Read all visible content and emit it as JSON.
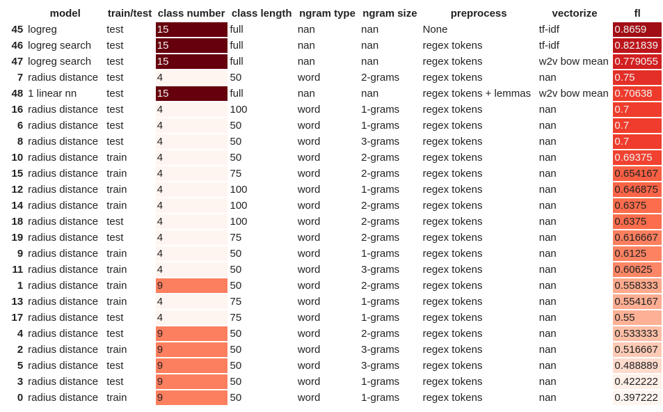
{
  "columns": [
    "model",
    "train/test",
    "class number",
    "class length",
    "ngram type",
    "ngram size",
    "preprocess",
    "vectorize",
    "fl"
  ],
  "rows": [
    {
      "idx": "45",
      "model": "logreg",
      "tt": "test",
      "cn": "15",
      "cl": "full",
      "nt": "nan",
      "ns": "nan",
      "pp": "None",
      "vec": "tf-idf",
      "f1": "0.8659",
      "cn_color": "#67000d",
      "cn_text": "#f1f1f1",
      "f1_color": "#a10e15",
      "f1_text": "#f1f1f1"
    },
    {
      "idx": "46",
      "model": "logreg search",
      "tt": "test",
      "cn": "15",
      "cl": "full",
      "nt": "nan",
      "ns": "nan",
      "pp": "regex tokens",
      "vec": "tf-idf",
      "f1": "0.821839",
      "cn_color": "#67000d",
      "cn_text": "#f1f1f1",
      "f1_color": "#bb141a",
      "f1_text": "#f1f1f1"
    },
    {
      "idx": "47",
      "model": "logreg search",
      "tt": "test",
      "cn": "15",
      "cl": "full",
      "nt": "nan",
      "ns": "nan",
      "pp": "regex tokens",
      "vec": "w2v bow mean",
      "f1": "0.779055",
      "cn_color": "#67000d",
      "cn_text": "#f1f1f1",
      "f1_color": "#d21f20",
      "f1_text": "#f1f1f1"
    },
    {
      "idx": "7",
      "model": "radius distance",
      "tt": "test",
      "cn": "4",
      "cl": "50",
      "nt": "word",
      "ns": "2-grams",
      "pp": "regex tokens",
      "vec": "nan",
      "f1": "0.75",
      "cn_color": "#fff5f0",
      "cn_text": "#222222",
      "f1_color": "#e32f27",
      "f1_text": "#f1f1f1"
    },
    {
      "idx": "48",
      "model": "1 linear nn",
      "tt": "test",
      "cn": "15",
      "cl": "full",
      "nt": "nan",
      "ns": "nan",
      "pp": "regex tokens + lemmas",
      "vec": "w2v bow mean",
      "f1": "0.70638",
      "cn_color": "#67000d",
      "cn_text": "#f1f1f1",
      "f1_color": "#ee3a2c",
      "f1_text": "#f1f1f1"
    },
    {
      "idx": "16",
      "model": "radius distance",
      "tt": "test",
      "cn": "4",
      "cl": "100",
      "nt": "word",
      "ns": "1-grams",
      "pp": "regex tokens",
      "vec": "nan",
      "f1": "0.7",
      "cn_color": "#fff5f0",
      "cn_text": "#222222",
      "f1_color": "#ef3c2c",
      "f1_text": "#f1f1f1"
    },
    {
      "idx": "6",
      "model": "radius distance",
      "tt": "test",
      "cn": "4",
      "cl": "50",
      "nt": "word",
      "ns": "1-grams",
      "pp": "regex tokens",
      "vec": "nan",
      "f1": "0.7",
      "cn_color": "#fff5f0",
      "cn_text": "#222222",
      "f1_color": "#ef3c2c",
      "f1_text": "#f1f1f1"
    },
    {
      "idx": "8",
      "model": "radius distance",
      "tt": "test",
      "cn": "4",
      "cl": "50",
      "nt": "word",
      "ns": "3-grams",
      "pp": "regex tokens",
      "vec": "nan",
      "f1": "0.7",
      "cn_color": "#fff5f0",
      "cn_text": "#222222",
      "f1_color": "#ef3c2c",
      "f1_text": "#f1f1f1"
    },
    {
      "idx": "10",
      "model": "radius distance",
      "tt": "train",
      "cn": "4",
      "cl": "50",
      "nt": "word",
      "ns": "2-grams",
      "pp": "regex tokens",
      "vec": "nan",
      "f1": "0.69375",
      "cn_color": "#fff5f0",
      "cn_text": "#222222",
      "f1_color": "#f14130",
      "f1_text": "#f1f1f1"
    },
    {
      "idx": "15",
      "model": "radius distance",
      "tt": "train",
      "cn": "4",
      "cl": "75",
      "nt": "word",
      "ns": "2-grams",
      "pp": "regex tokens",
      "vec": "nan",
      "f1": "0.654167",
      "cn_color": "#fff5f0",
      "cn_text": "#222222",
      "f1_color": "#f85f43",
      "f1_text": "#222222"
    },
    {
      "idx": "12",
      "model": "radius distance",
      "tt": "train",
      "cn": "4",
      "cl": "100",
      "nt": "word",
      "ns": "1-grams",
      "pp": "regex tokens",
      "vec": "nan",
      "f1": "0.646875",
      "cn_color": "#fff5f0",
      "cn_text": "#222222",
      "f1_color": "#fa6547",
      "f1_text": "#222222"
    },
    {
      "idx": "14",
      "model": "radius distance",
      "tt": "train",
      "cn": "4",
      "cl": "100",
      "nt": "word",
      "ns": "2-grams",
      "pp": "regex tokens",
      "vec": "nan",
      "f1": "0.6375",
      "cn_color": "#fff5f0",
      "cn_text": "#222222",
      "f1_color": "#fb6d4d",
      "f1_text": "#222222"
    },
    {
      "idx": "18",
      "model": "radius distance",
      "tt": "test",
      "cn": "4",
      "cl": "100",
      "nt": "word",
      "ns": "2-grams",
      "pp": "regex tokens",
      "vec": "nan",
      "f1": "0.6375",
      "cn_color": "#fff5f0",
      "cn_text": "#222222",
      "f1_color": "#fb6d4d",
      "f1_text": "#222222"
    },
    {
      "idx": "19",
      "model": "radius distance",
      "tt": "test",
      "cn": "4",
      "cl": "75",
      "nt": "word",
      "ns": "2-grams",
      "pp": "regex tokens",
      "vec": "nan",
      "f1": "0.616667",
      "cn_color": "#fff5f0",
      "cn_text": "#222222",
      "f1_color": "#fc7f5f",
      "f1_text": "#222222"
    },
    {
      "idx": "9",
      "model": "radius distance",
      "tt": "train",
      "cn": "4",
      "cl": "50",
      "nt": "word",
      "ns": "1-grams",
      "pp": "regex tokens",
      "vec": "nan",
      "f1": "0.6125",
      "cn_color": "#fff5f0",
      "cn_text": "#222222",
      "f1_color": "#fc8262",
      "f1_text": "#222222"
    },
    {
      "idx": "11",
      "model": "radius distance",
      "tt": "train",
      "cn": "4",
      "cl": "50",
      "nt": "word",
      "ns": "3-grams",
      "pp": "regex tokens",
      "vec": "nan",
      "f1": "0.60625",
      "cn_color": "#fff5f0",
      "cn_text": "#222222",
      "f1_color": "#fc8767",
      "f1_text": "#222222"
    },
    {
      "idx": "1",
      "model": "radius distance",
      "tt": "train",
      "cn": "9",
      "cl": "50",
      "nt": "word",
      "ns": "2-grams",
      "pp": "regex tokens",
      "vec": "nan",
      "f1": "0.558333",
      "cn_color": "#fc7f5f",
      "cn_text": "#222222",
      "f1_color": "#fcaa8d",
      "f1_text": "#222222"
    },
    {
      "idx": "13",
      "model": "radius distance",
      "tt": "train",
      "cn": "4",
      "cl": "75",
      "nt": "word",
      "ns": "1-grams",
      "pp": "regex tokens",
      "vec": "nan",
      "f1": "0.554167",
      "cn_color": "#fff5f0",
      "cn_text": "#222222",
      "f1_color": "#fcae92",
      "f1_text": "#222222"
    },
    {
      "idx": "17",
      "model": "radius distance",
      "tt": "test",
      "cn": "4",
      "cl": "75",
      "nt": "word",
      "ns": "1-grams",
      "pp": "regex tokens",
      "vec": "nan",
      "f1": "0.55",
      "cn_color": "#fff5f0",
      "cn_text": "#222222",
      "f1_color": "#fcb196",
      "f1_text": "#222222"
    },
    {
      "idx": "4",
      "model": "radius distance",
      "tt": "test",
      "cn": "9",
      "cl": "50",
      "nt": "word",
      "ns": "2-grams",
      "pp": "regex tokens",
      "vec": "nan",
      "f1": "0.533333",
      "cn_color": "#fc7f5f",
      "cn_text": "#222222",
      "f1_color": "#fcbea5",
      "f1_text": "#222222"
    },
    {
      "idx": "2",
      "model": "radius distance",
      "tt": "train",
      "cn": "9",
      "cl": "50",
      "nt": "word",
      "ns": "3-grams",
      "pp": "regex tokens",
      "vec": "nan",
      "f1": "0.516667",
      "cn_color": "#fc7f5f",
      "cn_text": "#222222",
      "f1_color": "#fdcab5",
      "f1_text": "#222222"
    },
    {
      "idx": "5",
      "model": "radius distance",
      "tt": "test",
      "cn": "9",
      "cl": "50",
      "nt": "word",
      "ns": "3-grams",
      "pp": "regex tokens",
      "vec": "nan",
      "f1": "0.488889",
      "cn_color": "#fc7f5f",
      "cn_text": "#222222",
      "f1_color": "#fedbcc",
      "f1_text": "#222222"
    },
    {
      "idx": "3",
      "model": "radius distance",
      "tt": "test",
      "cn": "9",
      "cl": "50",
      "nt": "word",
      "ns": "1-grams",
      "pp": "regex tokens",
      "vec": "nan",
      "f1": "0.422222",
      "cn_color": "#fc7f5f",
      "cn_text": "#222222",
      "f1_color": "#fff0e8",
      "f1_text": "#222222"
    },
    {
      "idx": "0",
      "model": "radius distance",
      "tt": "train",
      "cn": "9",
      "cl": "50",
      "nt": "word",
      "ns": "1-grams",
      "pp": "regex tokens",
      "vec": "nan",
      "f1": "0.397222",
      "cn_color": "#fc7f5f",
      "cn_text": "#222222",
      "f1_color": "#fff5f0",
      "f1_text": "#222222"
    }
  ]
}
